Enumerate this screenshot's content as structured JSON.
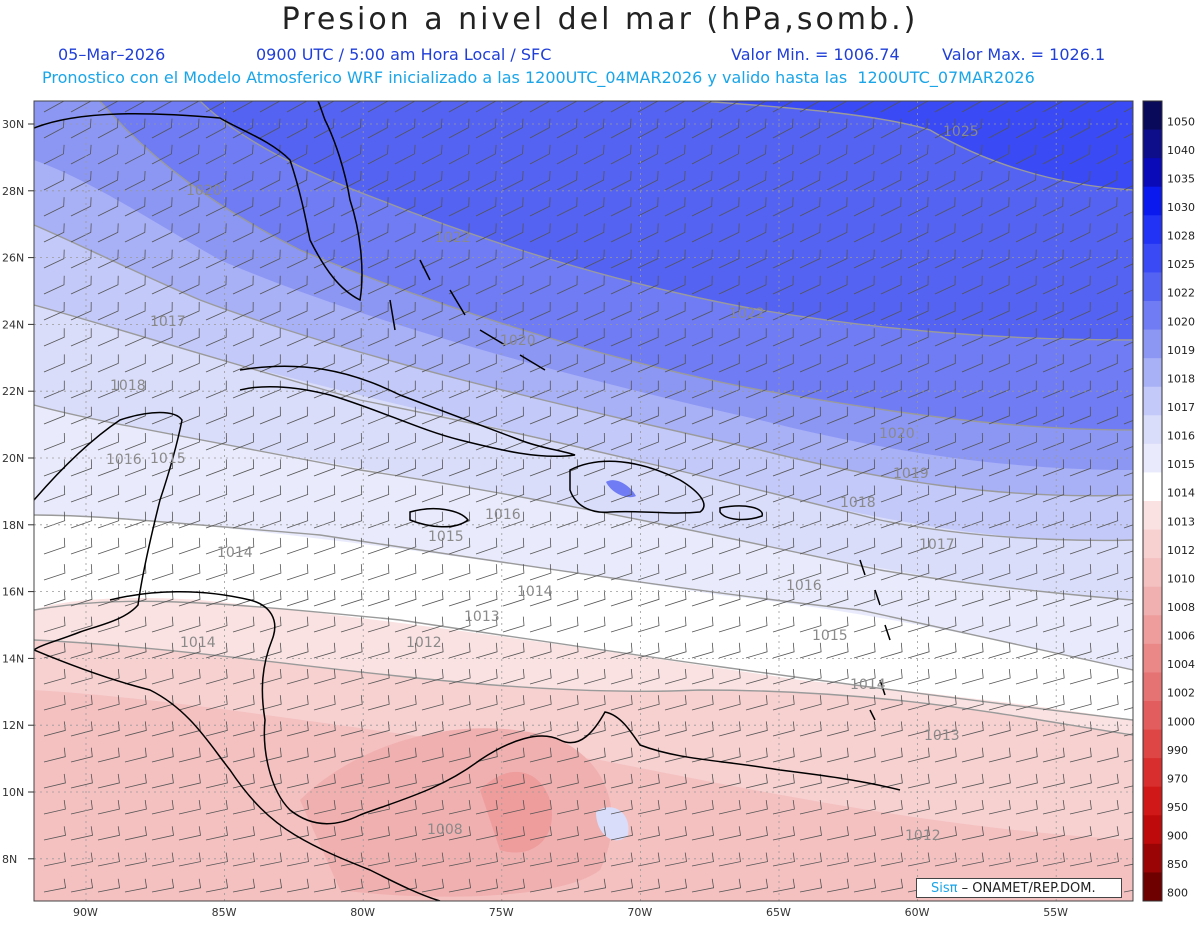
{
  "title": "Presion a nivel del mar (hPa,somb.)",
  "header": {
    "date": "05–Mar–2026",
    "time": "0900 UTC / 5:00 am Hora Local / SFC",
    "min": "Valor Min. = 1006.74",
    "max": "Valor Max. = 1026.1",
    "model": "Pronostico con el Modelo Atmosferico WRF inicializado a las 1200UTC_04MAR2026 y valido hasta las  1200UTC_07MAR2026"
  },
  "lat_labels": [
    "30N",
    "28N",
    "26N",
    "24N",
    "22N",
    "20N",
    "18N",
    "16N",
    "14N",
    "12N",
    "10N",
    "8N"
  ],
  "lon_labels": [
    "90W",
    "85W",
    "80W",
    "75W",
    "70W",
    "65W",
    "60W",
    "55W"
  ],
  "colorbar": {
    "levels": [
      "1050",
      "1040",
      "1035",
      "1030",
      "1028",
      "1025",
      "1022",
      "1020",
      "1019",
      "1018",
      "1017",
      "1016",
      "1015",
      "1014",
      "1013",
      "1012",
      "1010",
      "1008",
      "1006",
      "1004",
      "1002",
      "1000",
      "990",
      "970",
      "950",
      "900",
      "850",
      "800"
    ],
    "colors": [
      "#0a0a5a",
      "#0e0e8a",
      "#0a0ab8",
      "#0a1aee",
      "#2233f5",
      "#3a4af5",
      "#5563f3",
      "#6f7cf3",
      "#8c97f4",
      "#a8b0f6",
      "#c3c9f8",
      "#d9ddfa",
      "#e9ebfc",
      "#ffffff",
      "#fbe2e2",
      "#f7d0d0",
      "#f4c0c0",
      "#f1b0b0",
      "#ee9c9c",
      "#ea8888",
      "#e67373",
      "#e25e5e",
      "#de4646",
      "#d82e2e",
      "#d11818",
      "#be0a0a",
      "#9a0404",
      "#6e0000"
    ]
  },
  "isobar_labels": [
    {
      "text": "1025"
    },
    {
      "text": "1022"
    },
    {
      "text": "1022"
    },
    {
      "text": "1020"
    },
    {
      "text": "1020"
    },
    {
      "text": "1020"
    },
    {
      "text": "1019"
    },
    {
      "text": "1018"
    },
    {
      "text": "1018"
    },
    {
      "text": "1017"
    },
    {
      "text": "1017"
    },
    {
      "text": "1016"
    },
    {
      "text": "1016"
    },
    {
      "text": "1016"
    },
    {
      "text": "1015"
    },
    {
      "text": "1015"
    },
    {
      "text": "1015"
    },
    {
      "text": "1014"
    },
    {
      "text": "1014"
    },
    {
      "text": "1014"
    },
    {
      "text": "1014"
    },
    {
      "text": "1013"
    },
    {
      "text": "1013"
    },
    {
      "text": "1012"
    },
    {
      "text": "1012"
    },
    {
      "text": "1008"
    }
  ],
  "badge": {
    "brand": "Sisπ",
    "org": " – ONAMET/REP.DOM."
  }
}
